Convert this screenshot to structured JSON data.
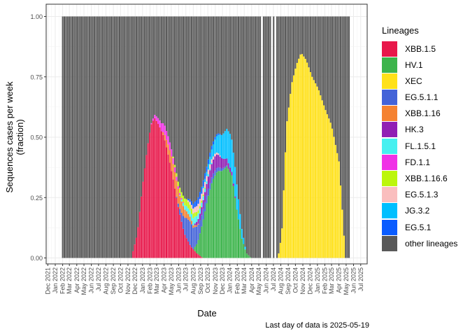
{
  "chart_data": {
    "type": "bar",
    "stacked": true,
    "xlabel": "Date",
    "ylabel": "Sequences cases per week\n(fraction)",
    "ylim": [
      0,
      1
    ],
    "yticks": [
      "0.00",
      "0.25",
      "0.50",
      "0.75",
      "1.00"
    ],
    "xticks": [
      "Dec 2021",
      "Jan 2022",
      "Feb 2022",
      "Mar 2022",
      "Apr 2022",
      "May 2022",
      "Jun 2022",
      "Jul 2022",
      "Aug 2022",
      "Sep 2022",
      "Oct 2022",
      "Nov 2022",
      "Dec 2022",
      "Jan 2023",
      "Feb 2023",
      "Mar 2023",
      "Apr 2023",
      "May 2023",
      "Jun 2023",
      "Jul 2023",
      "Aug 2023",
      "Sep 2023",
      "Oct 2023",
      "Nov 2023",
      "Dec 2023",
      "Jan 2024",
      "Feb 2024",
      "Mar 2024",
      "Apr 2024",
      "May 2024",
      "Jun 2024",
      "Jul 2024",
      "Aug 2024",
      "Sep 2024",
      "Oct 2024",
      "Nov 2024",
      "Dec 2024",
      "Jan 2025",
      "Feb 2025",
      "Mar 2025",
      "Apr 2025",
      "May 2025",
      "Jun 2025",
      "Jul 2025"
    ],
    "grid": true,
    "legend_position": "right",
    "legend_title": "Lineages",
    "series": [
      {
        "name": "XBB.1.5",
        "color": "#E8174A",
        "points": [
          [
            "2022-11-20",
            0.02
          ],
          [
            "2022-12-10",
            0.1
          ],
          [
            "2023-01-01",
            0.3
          ],
          [
            "2023-01-20",
            0.45
          ],
          [
            "2023-02-05",
            0.55
          ],
          [
            "2023-02-20",
            0.58
          ],
          [
            "2023-03-10",
            0.55
          ],
          [
            "2023-04-01",
            0.5
          ],
          [
            "2023-04-20",
            0.42
          ],
          [
            "2023-05-10",
            0.32
          ],
          [
            "2023-06-01",
            0.2
          ],
          [
            "2023-06-25",
            0.1
          ],
          [
            "2023-07-20",
            0.05
          ],
          [
            "2023-08-15",
            0.02
          ],
          [
            "2023-09-10",
            0.0
          ]
        ]
      },
      {
        "name": "HV.1",
        "color": "#3CB44B",
        "points": [
          [
            "2023-08-01",
            0.0
          ],
          [
            "2023-08-20",
            0.05
          ],
          [
            "2023-09-10",
            0.15
          ],
          [
            "2023-10-01",
            0.25
          ],
          [
            "2023-10-20",
            0.32
          ],
          [
            "2023-11-10",
            0.36
          ],
          [
            "2023-12-01",
            0.36
          ],
          [
            "2023-12-20",
            0.38
          ],
          [
            "2024-01-10",
            0.34
          ],
          [
            "2024-01-30",
            0.2
          ],
          [
            "2024-02-20",
            0.08
          ],
          [
            "2024-03-10",
            0.02
          ],
          [
            "2024-03-30",
            0.0
          ]
        ]
      },
      {
        "name": "XEC",
        "color": "#FFE119",
        "points": [
          [
            "2024-07-20",
            0.0
          ],
          [
            "2024-08-05",
            0.1
          ],
          [
            "2024-08-25",
            0.55
          ],
          [
            "2024-09-15",
            0.72
          ],
          [
            "2024-10-05",
            0.8
          ],
          [
            "2024-10-25",
            0.85
          ],
          [
            "2024-11-15",
            0.82
          ],
          [
            "2024-12-10",
            0.75
          ],
          [
            "2025-01-05",
            0.7
          ],
          [
            "2025-02-01",
            0.62
          ],
          [
            "2025-03-01",
            0.55
          ],
          [
            "2025-04-01",
            0.4
          ],
          [
            "2025-04-15",
            0.2
          ],
          [
            "2025-04-28",
            0.0
          ]
        ]
      },
      {
        "name": "EG.5.1.1",
        "color": "#4363D8",
        "points": [
          [
            "2023-05-20",
            0.0
          ],
          [
            "2023-06-10",
            0.03
          ],
          [
            "2023-07-01",
            0.08
          ],
          [
            "2023-07-20",
            0.1
          ],
          [
            "2023-08-10",
            0.08
          ],
          [
            "2023-09-01",
            0.05
          ],
          [
            "2023-10-01",
            0.03
          ],
          [
            "2023-11-01",
            0.02
          ],
          [
            "2023-12-01",
            0.01
          ],
          [
            "2024-01-01",
            0.0
          ]
        ]
      },
      {
        "name": "XBB.1.16",
        "color": "#F58231",
        "points": [
          [
            "2023-03-20",
            0.0
          ],
          [
            "2023-04-10",
            0.03
          ],
          [
            "2023-05-01",
            0.06
          ],
          [
            "2023-05-20",
            0.07
          ],
          [
            "2023-06-10",
            0.05
          ],
          [
            "2023-07-01",
            0.03
          ],
          [
            "2023-08-01",
            0.01
          ],
          [
            "2023-09-01",
            0.0
          ]
        ]
      },
      {
        "name": "HK.3",
        "color": "#911EB4",
        "points": [
          [
            "2023-08-01",
            0.0
          ],
          [
            "2023-09-01",
            0.03
          ],
          [
            "2023-10-01",
            0.05
          ],
          [
            "2023-11-01",
            0.06
          ],
          [
            "2023-12-01",
            0.04
          ],
          [
            "2024-01-01",
            0.02
          ],
          [
            "2024-02-01",
            0.0
          ]
        ]
      },
      {
        "name": "FL.1.5.1",
        "color": "#46F0F0",
        "points": [
          [
            "2023-06-01",
            0.0
          ],
          [
            "2023-07-01",
            0.02
          ],
          [
            "2023-08-01",
            0.03
          ],
          [
            "2023-09-01",
            0.02
          ],
          [
            "2023-10-01",
            0.01
          ],
          [
            "2023-11-01",
            0.0
          ]
        ]
      },
      {
        "name": "FD.1.1",
        "color": "#F032E6",
        "points": [
          [
            "2023-02-01",
            0.0
          ],
          [
            "2023-03-01",
            0.02
          ],
          [
            "2023-04-01",
            0.04
          ],
          [
            "2023-05-01",
            0.03
          ],
          [
            "2023-06-01",
            0.01
          ],
          [
            "2023-07-01",
            0.0
          ]
        ]
      },
      {
        "name": "XBB.1.16.6",
        "color": "#BCF60C",
        "points": [
          [
            "2023-05-01",
            0.0
          ],
          [
            "2023-06-01",
            0.02
          ],
          [
            "2023-07-01",
            0.03
          ],
          [
            "2023-08-01",
            0.02
          ],
          [
            "2023-09-01",
            0.01
          ],
          [
            "2023-10-01",
            0.0
          ]
        ]
      },
      {
        "name": "EG.5.1.3",
        "color": "#FABEBE",
        "points": [
          [
            "2023-07-01",
            0.0
          ],
          [
            "2023-08-01",
            0.02
          ],
          [
            "2023-09-01",
            0.03
          ],
          [
            "2023-10-01",
            0.02
          ],
          [
            "2023-11-01",
            0.01
          ],
          [
            "2023-12-01",
            0.0
          ]
        ]
      },
      {
        "name": "JG.3.2",
        "color": "#00BFFF",
        "points": [
          [
            "2023-09-01",
            0.0
          ],
          [
            "2023-10-01",
            0.02
          ],
          [
            "2023-11-01",
            0.06
          ],
          [
            "2023-12-01",
            0.1
          ],
          [
            "2024-01-01",
            0.14
          ],
          [
            "2024-01-25",
            0.12
          ],
          [
            "2024-02-20",
            0.04
          ],
          [
            "2024-03-10",
            0.0
          ]
        ]
      },
      {
        "name": "EG.5.1",
        "color": "#0A5CFF",
        "points": [
          [
            "2023-07-01",
            0.0
          ],
          [
            "2023-08-01",
            0.02
          ],
          [
            "2023-09-01",
            0.03
          ],
          [
            "2023-10-01",
            0.02
          ],
          [
            "2023-11-01",
            0.01
          ],
          [
            "2023-12-01",
            0.0
          ]
        ]
      }
    ],
    "other_lineages": {
      "name": "other lineages",
      "color": "#595959"
    },
    "data_range": {
      "start": "2022-02-01",
      "end": "2025-05-19"
    },
    "gap_weeks": [
      "2024-05-15",
      "2024-06-28",
      "2024-07-12"
    ]
  },
  "legend": {
    "title": "Lineages",
    "items": [
      {
        "label": "XBB.1.5",
        "color": "#E8174A"
      },
      {
        "label": "HV.1",
        "color": "#3CB44B"
      },
      {
        "label": "XEC",
        "color": "#FFE119"
      },
      {
        "label": "EG.5.1.1",
        "color": "#4363D8"
      },
      {
        "label": "XBB.1.16",
        "color": "#F58231"
      },
      {
        "label": "HK.3",
        "color": "#911EB4"
      },
      {
        "label": "FL.1.5.1",
        "color": "#46F0F0"
      },
      {
        "label": "FD.1.1",
        "color": "#F032E6"
      },
      {
        "label": "XBB.1.16.6",
        "color": "#BCF60C"
      },
      {
        "label": "EG.5.1.3",
        "color": "#FABEBE"
      },
      {
        "label": "JG.3.2",
        "color": "#00BFFF"
      },
      {
        "label": "EG.5.1",
        "color": "#0A5CFF"
      },
      {
        "label": "other lineages",
        "color": "#595959"
      }
    ]
  },
  "caption": "Last day of data is 2025-05-19"
}
